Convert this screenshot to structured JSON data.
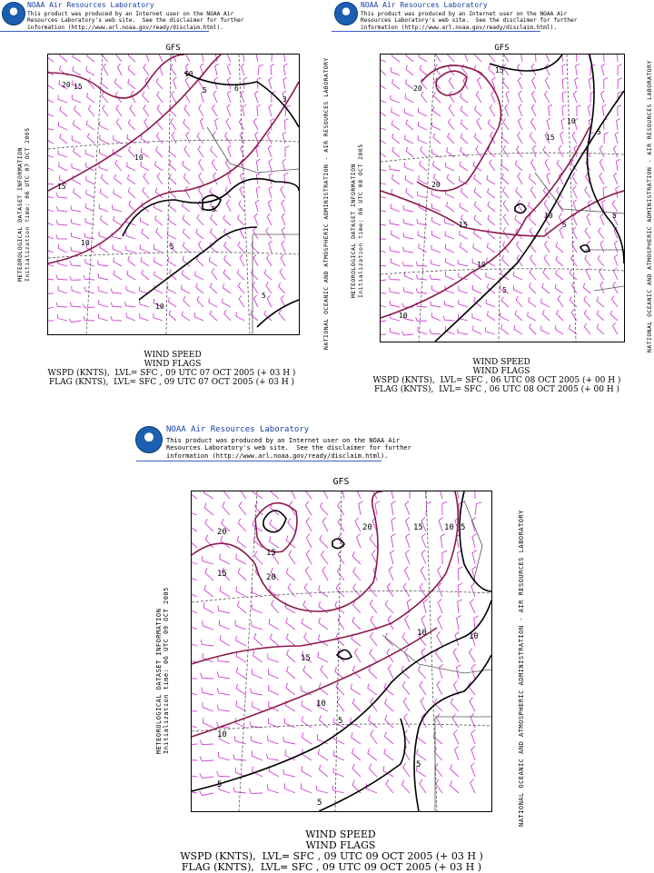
{
  "panels": [
    {
      "org": "NOAA Air Resources Laboratory",
      "disclaimer": "This product was produced by an Internet user on the NOAA Air\nResources Laboratory's web site.  See the disclaimer for further\ninformation (http://www.arl.noaa.gov/ready/disclaim.html).",
      "model": "GFS",
      "left_title": "METEOROLOGICAL DATASET INFORMATION",
      "init_time": "Initialization time: 06 UTC 07 OCT 2005",
      "right_label": "NATIONAL OCEANIC AND ATMOSPHERIC ADMINISTRATION  -  AIR RESOURCES LABORATORY",
      "caption_title": "WIND SPEED\nWIND FLAGS",
      "caption_lines": "WSPD (KNTS),  LVL= SFC , 09 UTC 07 OCT 2005 (+ 03 H )\nFLAG (KNTS),  LVL= SFC , 09 UTC 07 OCT 2005 (+ 03 H )",
      "contour_labels": [
        "20",
        "15",
        "10",
        "5",
        "6",
        "3",
        "15",
        "10",
        "5",
        "10",
        "5",
        "10",
        "5"
      ]
    },
    {
      "org": "NOAA Air Resources Laboratory",
      "disclaimer": "This product was produced by an Internet user on the NOAA Air\nResources Laboratory's web site.  See the disclaimer for further\ninformation (http://www.arl.noaa.gov/ready/disclaim.html).",
      "model": "GFS",
      "left_title": "METEOROLOGICAL DATASET INFORMATION",
      "init_time": "Initialization time: 06 UTC 08 OCT 2005",
      "right_label": "NATIONAL OCEANIC AND ATMOSPHERIC ADMINISTRATION  -  AIR RESOURCES LABORATORY",
      "caption_title": "WIND SPEED\nWIND FLAGS",
      "caption_lines": "WSPD (KNTS),  LVL= SFC , 06 UTC 08 OCT 2005 (+ 00 H )\nFLAG (KNTS),  LVL= SFC , 06 UTC 08 OCT 2005 (+ 00 H )",
      "contour_labels": [
        "15",
        "20",
        "10",
        "15",
        "5",
        "20",
        "15",
        "10",
        "5",
        "5",
        "10",
        "5",
        "10"
      ]
    },
    {
      "org": "NOAA Air Resources Laboratory",
      "disclaimer": "This product was produced by an Internet user on the NOAA Air\nResources Laboratory's web site.  See the disclaimer for further\ninformation (http://www.arl.noaa.gov/ready/disclaim.html).",
      "model": "GFS",
      "left_title": "METEOROLOGICAL DATASET INFORMATION",
      "init_time": "Initialization time: 06 UTC 09 OCT 2005",
      "right_label": "NATIONAL OCEANIC AND ATMOSPHERIC ADMINISTRATION  -  AIR RESOURCES LABORATORY",
      "caption_title": "WIND SPEED\nWIND FLAGS",
      "caption_lines": "WSPD (KNTS),  LVL= SFC , 09 UTC 09 OCT 2005 (+ 03 H )\nFLAG (KNTS),  LVL= SFC , 09 UTC 09 OCT 2005 (+ 03 H )",
      "contour_labels": [
        "20",
        "15",
        "15",
        "20",
        "20",
        "15",
        "10",
        "5",
        "10",
        "15",
        "10",
        "10",
        "5",
        "10",
        "5",
        "5",
        "5"
      ]
    }
  ],
  "colors": {
    "wind_flags": "#d23fd6",
    "isotach_strong": "#8b1a4a",
    "isotach_weak": "#000000",
    "graticule": "#555555",
    "header_link": "#1a3fa6",
    "noaa_logo": "#1d5fb0"
  },
  "icons": [
    "noaa-logo-icon"
  ]
}
